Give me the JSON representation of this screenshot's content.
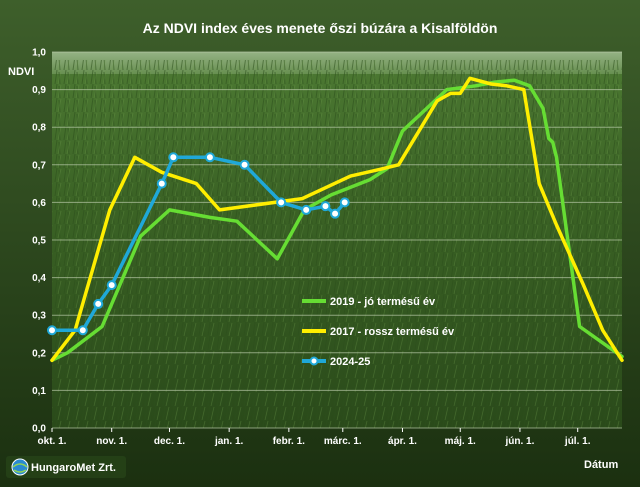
{
  "chart_data": {
    "type": "line",
    "title": "Az NDVI index éves menete őszi búzára a Kisalföldön",
    "ylabel": "NDVI",
    "xlabel": "Dátum",
    "ylim": [
      0,
      1
    ],
    "y_ticks": [
      "0,0",
      "0,1",
      "0,2",
      "0,3",
      "0,4",
      "0,5",
      "0,6",
      "0,7",
      "0,8",
      "0,9",
      "1,0"
    ],
    "x_ticks": [
      {
        "label": "okt. 1.",
        "day": 0
      },
      {
        "label": "nov. 1.",
        "day": 31
      },
      {
        "label": "dec. 1.",
        "day": 61
      },
      {
        "label": "jan. 1.",
        "day": 92
      },
      {
        "label": "febr. 1.",
        "day": 123
      },
      {
        "label": "márc. 1.",
        "day": 151
      },
      {
        "label": "ápr. 1.",
        "day": 182
      },
      {
        "label": "máj. 1.",
        "day": 212
      },
      {
        "label": "jún. 1.",
        "day": 243
      },
      {
        "label": "júl. 1.",
        "day": 273
      }
    ],
    "x_range_days": [
      0,
      296
    ],
    "grid": "horizontal",
    "legend_position": "center-right",
    "series": [
      {
        "name": "2019 - jó termésű év",
        "color": "#66dd33",
        "marker": "none",
        "points": [
          [
            0,
            0.18
          ],
          [
            8,
            0.2
          ],
          [
            26,
            0.27
          ],
          [
            46,
            0.51
          ],
          [
            61,
            0.58
          ],
          [
            82,
            0.56
          ],
          [
            96,
            0.55
          ],
          [
            117,
            0.45
          ],
          [
            131,
            0.58
          ],
          [
            145,
            0.62
          ],
          [
            165,
            0.66
          ],
          [
            174,
            0.69
          ],
          [
            182,
            0.79
          ],
          [
            205,
            0.9
          ],
          [
            220,
            0.91
          ],
          [
            230,
            0.92
          ],
          [
            240,
            0.925
          ],
          [
            248,
            0.91
          ],
          [
            255,
            0.85
          ],
          [
            258,
            0.77
          ],
          [
            260,
            0.76
          ],
          [
            262,
            0.72
          ],
          [
            274,
            0.27
          ],
          [
            296,
            0.19
          ]
        ]
      },
      {
        "name": "2017 - rossz termésű év",
        "color": "#ffee00",
        "marker": "none",
        "points": [
          [
            0,
            0.18
          ],
          [
            12,
            0.26
          ],
          [
            30,
            0.58
          ],
          [
            43,
            0.72
          ],
          [
            57,
            0.68
          ],
          [
            75,
            0.65
          ],
          [
            87,
            0.58
          ],
          [
            130,
            0.61
          ],
          [
            155,
            0.67
          ],
          [
            172,
            0.69
          ],
          [
            180,
            0.7
          ],
          [
            200,
            0.87
          ],
          [
            207,
            0.89
          ],
          [
            212,
            0.89
          ],
          [
            217,
            0.93
          ],
          [
            228,
            0.915
          ],
          [
            236,
            0.91
          ],
          [
            245,
            0.9
          ],
          [
            253,
            0.65
          ],
          [
            262,
            0.54
          ],
          [
            276,
            0.38
          ],
          [
            286,
            0.26
          ],
          [
            296,
            0.18
          ]
        ]
      },
      {
        "name": "2024-25",
        "color": "#1fa8d8",
        "marker": "circle",
        "points": [
          [
            0,
            0.26
          ],
          [
            16,
            0.26
          ],
          [
            24,
            0.33
          ],
          [
            31,
            0.38
          ],
          [
            57,
            0.65
          ],
          [
            63,
            0.72
          ],
          [
            82,
            0.72
          ],
          [
            100,
            0.7
          ],
          [
            119,
            0.6
          ],
          [
            132,
            0.58
          ],
          [
            142,
            0.59
          ],
          [
            147,
            0.57
          ],
          [
            152,
            0.6
          ]
        ]
      }
    ]
  },
  "logo": {
    "text": "HungaroMet Zrt."
  }
}
